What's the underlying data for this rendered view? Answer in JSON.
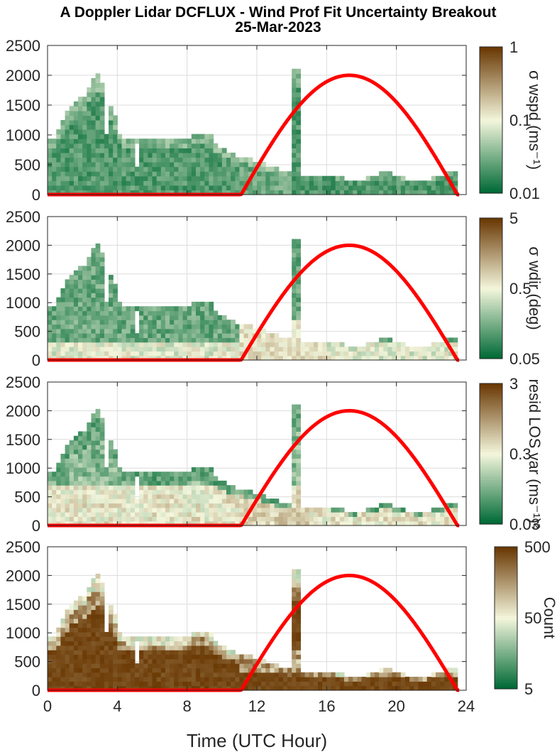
{
  "header": {
    "title_line1": "A Doppler Lidar DCFLUX - Wind Prof Fit Uncertainty Breakout",
    "title_line2": "25-Mar-2023"
  },
  "colors": {
    "heatmap_low": "#006a36",
    "heatmap_mid": "#f4f6dc",
    "heatmap_high": "#6b3a05",
    "curve": "#ff0000",
    "grid": "#dcdcdc"
  },
  "chart_data": [
    {
      "type": "heatmap",
      "panel": 1,
      "xlim": [
        0,
        24
      ],
      "ylim": [
        0,
        2500
      ],
      "yticks": [
        0,
        500,
        1000,
        1500,
        2000,
        2500
      ],
      "grid": true,
      "colorbar": {
        "label": "σ wspd (ms⁻¹)",
        "ticks": [
          "1",
          "0.1",
          "0.01"
        ],
        "scale": "log"
      },
      "overlay_curve": {
        "x": [
          0,
          11.1,
          12,
          14,
          16,
          17.25,
          18.5,
          20,
          22,
          23.4,
          23.6
        ],
        "y": [
          0,
          0,
          400,
          1350,
          1910,
          2000,
          1910,
          1600,
          800,
          0,
          0
        ]
      }
    },
    {
      "type": "heatmap",
      "panel": 2,
      "xlim": [
        0,
        24
      ],
      "ylim": [
        0,
        2500
      ],
      "yticks": [
        0,
        500,
        1000,
        1500,
        2000,
        2500
      ],
      "grid": true,
      "colorbar": {
        "label": "σ wdir (deg)",
        "ticks": [
          "5",
          "0.5",
          "0.05"
        ],
        "scale": "log"
      }
    },
    {
      "type": "heatmap",
      "panel": 3,
      "xlim": [
        0,
        24
      ],
      "ylim": [
        0,
        2500
      ],
      "yticks": [
        0,
        500,
        1000,
        1500,
        2000,
        2500
      ],
      "grid": true,
      "colorbar": {
        "label": "resid LOS var (ms⁻¹)²",
        "ticks": [
          "3",
          "0.3",
          "0.03"
        ],
        "scale": "log"
      }
    },
    {
      "type": "heatmap",
      "panel": 4,
      "xlim": [
        0,
        24
      ],
      "ylim": [
        0,
        2500
      ],
      "xticks": [
        0,
        4,
        8,
        12,
        16,
        20,
        24
      ],
      "yticks": [
        0,
        500,
        1000,
        1500,
        2000,
        2500
      ],
      "xlabel": "Time (UTC Hour)",
      "grid": true,
      "colorbar": {
        "label": "Count",
        "ticks": [
          "500",
          "50",
          "5"
        ],
        "scale": "log"
      }
    }
  ]
}
